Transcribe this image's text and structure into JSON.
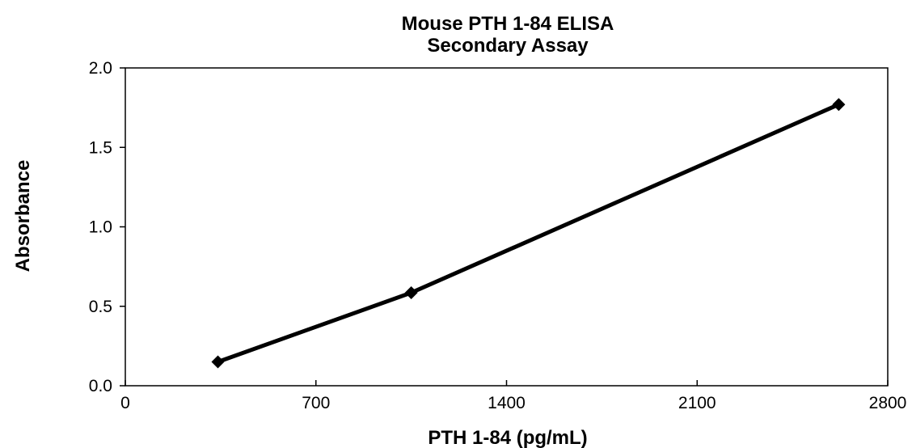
{
  "chart_data": {
    "type": "line",
    "title": [
      "Mouse PTH 1-84 ELISA",
      "Secondary Assay"
    ],
    "xlabel": "PTH 1-84 (pg/mL)",
    "ylabel": "Absorbance",
    "xlim": [
      0,
      2800
    ],
    "ylim": [
      0,
      2.0
    ],
    "xticks": [
      0,
      700,
      1400,
      2100,
      2800
    ],
    "xtick_labels": [
      "0",
      "700",
      "1400",
      "2100",
      "2800"
    ],
    "yticks": [
      0,
      0.5,
      1.0,
      1.5,
      2.0
    ],
    "ytick_labels": [
      "0.0",
      "0.5",
      "1.0",
      "1.5",
      "2.0"
    ],
    "grid": false,
    "legend": "none",
    "series": [
      {
        "x": [
          340,
          1050,
          2620
        ],
        "y": [
          0.15,
          0.585,
          1.77
        ],
        "color": "#000000",
        "marker": "diamond"
      }
    ]
  }
}
